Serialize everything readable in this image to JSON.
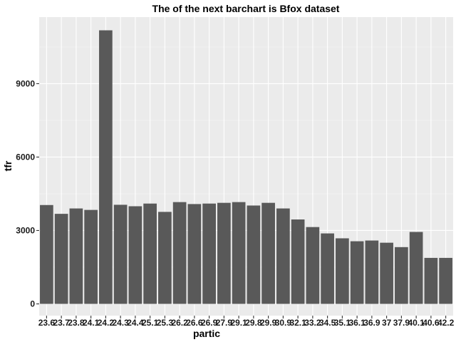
{
  "chart_data": {
    "type": "bar",
    "title": "The of the next barchart is Bfox dataset",
    "xlabel": "partic",
    "ylabel": "tfr",
    "categories": [
      "23.6",
      "23.7",
      "23.8",
      "24.1",
      "24.2",
      "24.3",
      "24.4",
      "25.1",
      "25.3",
      "26.2",
      "26.6",
      "26.9",
      "27.9",
      "29.1",
      "29.8",
      "29.9",
      "30.9",
      "32.1",
      "33.2",
      "34.5",
      "35.1",
      "36.1",
      "36.9",
      "37",
      "37.9",
      "40.1",
      "40.6",
      "42.2"
    ],
    "values": [
      4040,
      3680,
      3900,
      3840,
      11180,
      4050,
      3990,
      4100,
      3760,
      4160,
      4080,
      4100,
      4130,
      4160,
      4020,
      4130,
      3900,
      3450,
      3140,
      2880,
      2680,
      2560,
      2590,
      2500,
      2320,
      2940,
      1880,
      1880
    ],
    "ylim": [
      -480,
      11720
    ],
    "yticks": [
      0,
      3000,
      6000,
      9000
    ],
    "ytick_labels": [
      "0",
      "3000",
      "6000",
      "9000"
    ],
    "grid": true,
    "colors": {
      "panel": "#ebebeb",
      "grid_major": "#ffffff",
      "grid_minor": "#f5f5f5",
      "bar": "#595959"
    }
  }
}
